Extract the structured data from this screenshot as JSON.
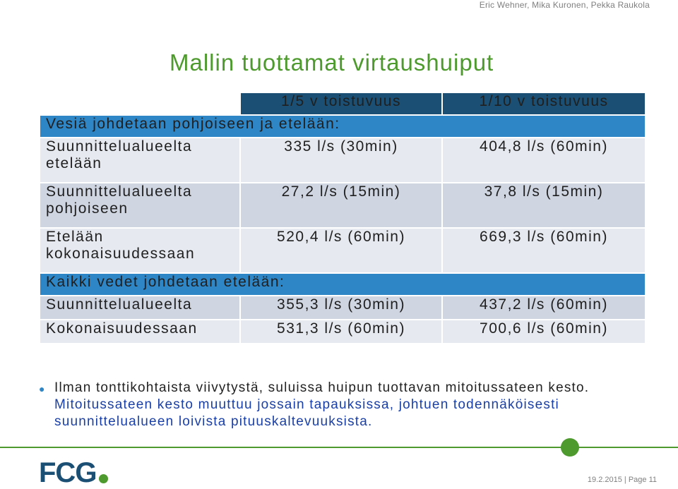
{
  "authors": "Eric Wehner, Mika Kuronen, Pekka Raukola",
  "title": "Mallin tuottamat virtaushuiput",
  "table": {
    "headers": [
      "1/5 v toistuvuus",
      "1/10 v toistuvuus"
    ],
    "section1": "Vesiä johdetaan pohjoiseen ja etelään:",
    "rows1": [
      {
        "label_1": "Suunnittelualueelta",
        "label_2": "etelään",
        "v5": "335 l/s (30min)",
        "v10": "404,8 l/s (60min)"
      },
      {
        "label_1": "Suunnittelualueelta",
        "label_2": "pohjoiseen",
        "v5": "27,2 l/s (15min)",
        "v10": "37,8 l/s (15min)"
      },
      {
        "label_1": "Etelään",
        "label_2": "kokonaisuudessaan",
        "v5": "520,4 l/s (60min)",
        "v10": "669,3 l/s (60min)"
      }
    ],
    "section2": "Kaikki vedet johdetaan etelään:",
    "rows2": [
      {
        "label": "Suunnittelualueelta",
        "v5": "355,3 l/s (30min)",
        "v10": "437,2 l/s (60min)"
      },
      {
        "label": "Kokonaisuudessaan",
        "v5": "531,3 l/s (60min)",
        "v10": "700,6 l/s (60min)"
      }
    ]
  },
  "bullet": {
    "part1": "Ilman tonttikohtaista viivytystä, suluissa huipun tuottavan mitoitussateen kesto.",
    "part2": "Mitoitussateen kesto muuttuu jossain tapauksissa, johtuen todennäköisesti suunnittelualueen loivista pituuskaltevuuksista."
  },
  "logo": "FCG",
  "footer": {
    "date": "19.2.2015",
    "page": "Page 11"
  },
  "colors": {
    "title": "#4e9a2e",
    "header": "#1b4f73",
    "section": "#2f86c6",
    "row_dark": "#cfd5e1",
    "row_light": "#e6e9ef",
    "blue_text": "#1a3fa5"
  }
}
